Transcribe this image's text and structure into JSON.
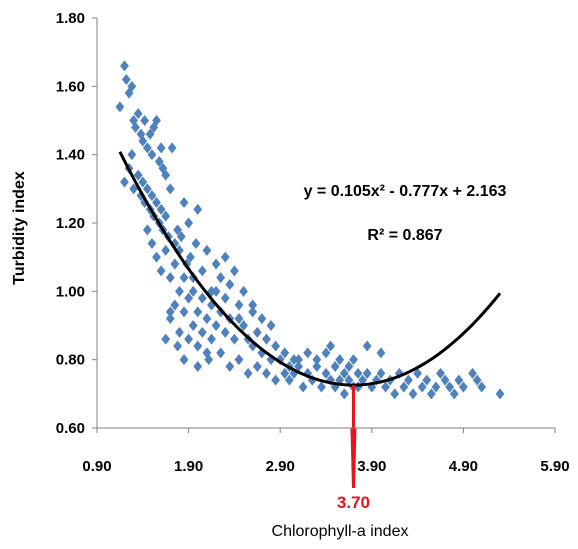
{
  "chart_data": {
    "type": "scatter",
    "xlabel": "Chlorophyll-a index",
    "ylabel": "Turbidity index",
    "xlim": [
      0.9,
      5.9
    ],
    "ylim": [
      0.6,
      1.8
    ],
    "xticks": [
      "0.90",
      "1.90",
      "2.90",
      "3.90",
      "4.90",
      "5.90"
    ],
    "yticks": [
      "0.60",
      "0.80",
      "1.00",
      "1.20",
      "1.40",
      "1.60",
      "1.80"
    ],
    "grid": false,
    "point_color": "#4f81bd",
    "trend_color": "#000000",
    "marker_color": "#e8141b",
    "trendline": {
      "equation": "y = 0.105x² - 0.777x + 2.163",
      "r_squared": "R² = 0.867",
      "a": 0.105,
      "b": -0.777,
      "c": 2.163,
      "x_start": 1.15,
      "x_end": 5.3
    },
    "marker": {
      "x": 3.7,
      "label": "3.70"
    },
    "points": [
      [
        1.15,
        1.54
      ],
      [
        1.2,
        1.66
      ],
      [
        1.22,
        1.62
      ],
      [
        1.25,
        1.58
      ],
      [
        1.28,
        1.6
      ],
      [
        1.3,
        1.5
      ],
      [
        1.32,
        1.48
      ],
      [
        1.35,
        1.52
      ],
      [
        1.38,
        1.46
      ],
      [
        1.4,
        1.44
      ],
      [
        1.42,
        1.5
      ],
      [
        1.45,
        1.42
      ],
      [
        1.48,
        1.46
      ],
      [
        1.5,
        1.4
      ],
      [
        1.52,
        1.48
      ],
      [
        1.55,
        1.5
      ],
      [
        1.58,
        1.38
      ],
      [
        1.6,
        1.42
      ],
      [
        1.62,
        1.36
      ],
      [
        1.65,
        1.34
      ],
      [
        1.2,
        1.32
      ],
      [
        1.25,
        1.36
      ],
      [
        1.28,
        1.4
      ],
      [
        1.3,
        1.3
      ],
      [
        1.35,
        1.34
      ],
      [
        1.38,
        1.28
      ],
      [
        1.4,
        1.32
      ],
      [
        1.42,
        1.26
      ],
      [
        1.45,
        1.3
      ],
      [
        1.48,
        1.24
      ],
      [
        1.5,
        1.28
      ],
      [
        1.52,
        1.22
      ],
      [
        1.55,
        1.26
      ],
      [
        1.58,
        1.2
      ],
      [
        1.6,
        1.24
      ],
      [
        1.62,
        1.18
      ],
      [
        1.65,
        1.22
      ],
      [
        1.68,
        1.16
      ],
      [
        1.7,
        1.3
      ],
      [
        1.72,
        1.42
      ],
      [
        1.75,
        1.14
      ],
      [
        1.78,
        1.18
      ],
      [
        1.8,
        1.12
      ],
      [
        1.82,
        1.16
      ],
      [
        1.85,
        1.26
      ],
      [
        1.88,
        1.08
      ],
      [
        1.9,
        1.2
      ],
      [
        1.92,
        1.1
      ],
      [
        1.95,
        1.04
      ],
      [
        1.98,
        1.14
      ],
      [
        2.0,
        1.24
      ],
      [
        2.05,
        1.06
      ],
      [
        2.1,
        1.12
      ],
      [
        2.15,
        1.0
      ],
      [
        2.2,
        1.08
      ],
      [
        2.25,
        1.04
      ],
      [
        2.3,
        0.98
      ],
      [
        2.35,
        1.02
      ],
      [
        2.4,
        1.06
      ],
      [
        2.45,
        0.96
      ],
      [
        1.45,
        1.18
      ],
      [
        1.5,
        1.14
      ],
      [
        1.55,
        1.1
      ],
      [
        1.6,
        1.06
      ],
      [
        1.65,
        1.12
      ],
      [
        1.7,
        1.04
      ],
      [
        1.75,
        1.08
      ],
      [
        1.8,
        1.0
      ],
      [
        1.85,
        1.04
      ],
      [
        1.9,
        0.98
      ],
      [
        1.95,
        1.0
      ],
      [
        2.0,
        0.94
      ],
      [
        2.05,
        0.98
      ],
      [
        2.1,
        0.92
      ],
      [
        2.15,
        0.96
      ],
      [
        2.2,
        0.9
      ],
      [
        2.25,
        0.94
      ],
      [
        2.3,
        0.88
      ],
      [
        2.35,
        0.92
      ],
      [
        2.4,
        0.86
      ],
      [
        1.7,
        0.92
      ],
      [
        1.75,
        0.96
      ],
      [
        1.8,
        0.88
      ],
      [
        1.85,
        0.94
      ],
      [
        1.9,
        0.86
      ],
      [
        1.95,
        0.9
      ],
      [
        2.0,
        0.84
      ],
      [
        2.05,
        0.88
      ],
      [
        2.1,
        0.82
      ],
      [
        2.15,
        0.86
      ],
      [
        1.65,
        0.86
      ],
      [
        1.7,
        0.94
      ],
      [
        1.78,
        0.84
      ],
      [
        1.85,
        0.8
      ],
      [
        2.0,
        0.78
      ],
      [
        2.12,
        0.8
      ],
      [
        2.25,
        0.82
      ],
      [
        2.35,
        0.78
      ],
      [
        2.45,
        0.8
      ],
      [
        2.55,
        0.76
      ],
      [
        2.5,
        0.9
      ],
      [
        2.55,
        0.86
      ],
      [
        2.6,
        0.84
      ],
      [
        2.65,
        0.88
      ],
      [
        2.7,
        0.82
      ],
      [
        2.75,
        0.86
      ],
      [
        2.8,
        0.8
      ],
      [
        2.85,
        0.84
      ],
      [
        2.9,
        0.8
      ],
      [
        2.95,
        0.82
      ],
      [
        2.5,
        1.0
      ],
      [
        2.6,
        0.96
      ],
      [
        2.7,
        0.92
      ],
      [
        2.45,
        0.92
      ],
      [
        2.65,
        0.78
      ],
      [
        2.75,
        0.76
      ],
      [
        2.85,
        0.74
      ],
      [
        2.95,
        0.76
      ],
      [
        3.0,
        0.78
      ],
      [
        3.05,
        0.8
      ],
      [
        3.0,
        0.74
      ],
      [
        3.05,
        0.76
      ],
      [
        3.1,
        0.78
      ],
      [
        3.15,
        0.72
      ],
      [
        3.2,
        0.76
      ],
      [
        3.25,
        0.74
      ],
      [
        3.3,
        0.78
      ],
      [
        3.35,
        0.72
      ],
      [
        3.4,
        0.76
      ],
      [
        3.45,
        0.74
      ],
      [
        3.1,
        0.8
      ],
      [
        3.2,
        0.82
      ],
      [
        3.3,
        0.8
      ],
      [
        3.4,
        0.82
      ],
      [
        3.5,
        0.78
      ],
      [
        3.55,
        0.8
      ],
      [
        3.6,
        0.76
      ],
      [
        3.65,
        0.74
      ],
      [
        3.7,
        0.72
      ],
      [
        3.75,
        0.76
      ],
      [
        3.5,
        0.72
      ],
      [
        3.55,
        0.74
      ],
      [
        3.6,
        0.7
      ],
      [
        3.65,
        0.78
      ],
      [
        3.7,
        0.8
      ],
      [
        3.75,
        0.72
      ],
      [
        3.8,
        0.74
      ],
      [
        3.85,
        0.76
      ],
      [
        3.9,
        0.72
      ],
      [
        3.95,
        0.74
      ],
      [
        4.0,
        0.76
      ],
      [
        4.05,
        0.72
      ],
      [
        4.1,
        0.74
      ],
      [
        4.15,
        0.7
      ],
      [
        4.2,
        0.76
      ],
      [
        4.25,
        0.72
      ],
      [
        4.3,
        0.74
      ],
      [
        4.35,
        0.7
      ],
      [
        4.4,
        0.76
      ],
      [
        4.45,
        0.72
      ],
      [
        4.5,
        0.74
      ],
      [
        4.55,
        0.7
      ],
      [
        4.6,
        0.72
      ],
      [
        4.65,
        0.76
      ],
      [
        4.7,
        0.74
      ],
      [
        4.75,
        0.72
      ],
      [
        4.8,
        0.7
      ],
      [
        4.85,
        0.74
      ],
      [
        4.9,
        0.72
      ],
      [
        5.0,
        0.76
      ],
      [
        5.05,
        0.74
      ],
      [
        5.1,
        0.72
      ],
      [
        5.3,
        0.7
      ],
      [
        4.0,
        0.82
      ],
      [
        3.85,
        0.84
      ],
      [
        3.45,
        0.84
      ],
      [
        2.8,
        0.9
      ],
      [
        2.6,
        0.94
      ],
      [
        2.3,
        1.1
      ],
      [
        2.2,
        1.0
      ]
    ]
  }
}
